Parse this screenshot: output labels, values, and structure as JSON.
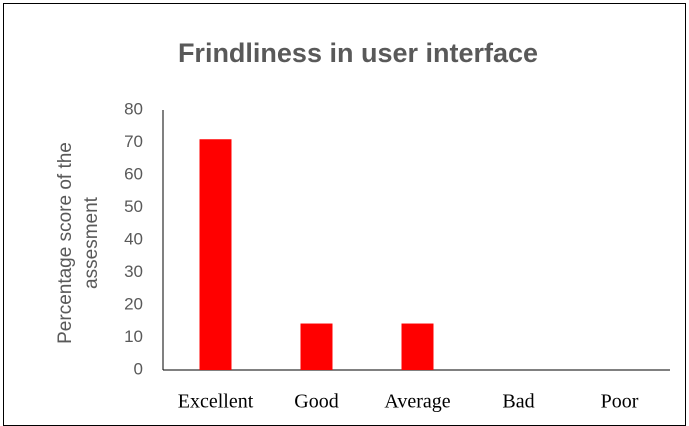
{
  "chart_data": {
    "type": "bar",
    "title": "Frindliness in user interface",
    "y_label": [
      "Percentage score of the",
      "assesment"
    ],
    "categories": [
      "Excellent",
      "Good",
      "Average",
      "Bad",
      "Poor"
    ],
    "values": [
      71,
      14.3,
      14.3,
      0,
      0
    ],
    "color": "#ff0000",
    "ylim": [
      0,
      80
    ],
    "yticks": [
      0,
      10,
      20,
      30,
      40,
      50,
      60,
      70,
      80
    ],
    "grid": false
  }
}
